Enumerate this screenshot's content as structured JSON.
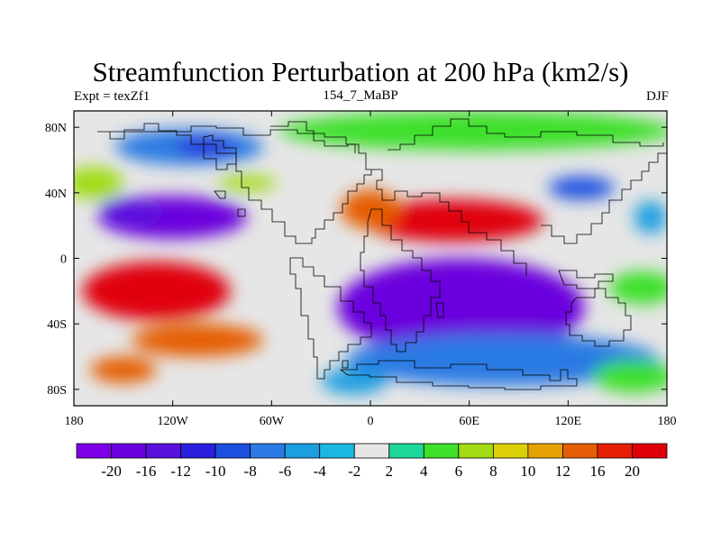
{
  "header": {
    "title": "Streamfunction Perturbation at 200 hPa (km2/s)",
    "left": "Expt = texZf1",
    "center": "154_7_MaBP",
    "right": "DJF"
  },
  "map": {
    "projection": "cylindrical-equidistant",
    "lon_range": [
      -180,
      180
    ],
    "lat_range": [
      -90,
      90
    ],
    "background_color": "#e6e6e6",
    "x_ticks": [
      {
        "lon": -180,
        "label": "180"
      },
      {
        "lon": -120,
        "label": "120W"
      },
      {
        "lon": -60,
        "label": "60W"
      },
      {
        "lon": 0,
        "label": "0"
      },
      {
        "lon": 60,
        "label": "60E"
      },
      {
        "lon": 120,
        "label": "120E"
      },
      {
        "lon": 180,
        "label": "180"
      }
    ],
    "y_ticks": [
      {
        "lat": 80,
        "label": "80N"
      },
      {
        "lat": 40,
        "label": "40N"
      },
      {
        "lat": 0,
        "label": "0"
      },
      {
        "lat": -40,
        "label": "40S"
      },
      {
        "lat": -80,
        "label": "80S"
      }
    ],
    "field": [
      {
        "lon": -120,
        "lat": 25,
        "rlon": 45,
        "rlat": 13,
        "value": -20
      },
      {
        "lon": -145,
        "lat": 28,
        "rlon": 20,
        "rlat": 9,
        "value": -14
      },
      {
        "lon": -110,
        "lat": 68,
        "rlon": 45,
        "rlat": 11,
        "value": -8
      },
      {
        "lon": -100,
        "lat": 68,
        "rlon": 18,
        "rlat": 5,
        "value": -12
      },
      {
        "lon": -75,
        "lat": 46,
        "rlon": 18,
        "rlat": 5,
        "value": 6
      },
      {
        "lon": -168,
        "lat": 46,
        "rlon": 18,
        "rlat": 10,
        "value": 6
      },
      {
        "lon": 50,
        "lat": 23,
        "rlon": 55,
        "rlat": 13,
        "value": 20
      },
      {
        "lon": 0,
        "lat": 30,
        "rlon": 18,
        "rlat": 12,
        "value": 12
      },
      {
        "lon": 128,
        "lat": 43,
        "rlon": 20,
        "rlat": 7,
        "value": -10
      },
      {
        "lon": 65,
        "lat": 78,
        "rlon": 120,
        "rlat": 12,
        "value": 4
      },
      {
        "lon": 170,
        "lat": 25,
        "rlon": 10,
        "rlat": 10,
        "value": -6
      },
      {
        "lon": -130,
        "lat": -20,
        "rlon": 45,
        "rlat": 18,
        "value": 20
      },
      {
        "lon": -105,
        "lat": -50,
        "rlon": 40,
        "rlat": 10,
        "value": 12
      },
      {
        "lon": -150,
        "lat": -68,
        "rlon": 20,
        "rlat": 8,
        "value": 12
      },
      {
        "lon": 55,
        "lat": -30,
        "rlon": 75,
        "rlat": 30,
        "value": -20
      },
      {
        "lon": 80,
        "lat": -62,
        "rlon": 95,
        "rlat": 16,
        "value": -8
      },
      {
        "lon": 160,
        "lat": -72,
        "rlon": 25,
        "rlat": 10,
        "value": 4
      },
      {
        "lon": 165,
        "lat": -18,
        "rlon": 20,
        "rlat": 10,
        "value": 4
      },
      {
        "lon": -10,
        "lat": -75,
        "rlon": 20,
        "rlat": 8,
        "value": -6
      }
    ]
  },
  "colorbar": {
    "colors": [
      "#7d00e8",
      "#6a00dd",
      "#5a10dc",
      "#2a1fdc",
      "#1c4fe0",
      "#2b7ae3",
      "#1c9ee0",
      "#1ab8e0",
      "#e6e6e6",
      "#1ed79a",
      "#3ee02a",
      "#a2dc13",
      "#dccf08",
      "#e5a104",
      "#e55d04",
      "#e62004",
      "#e00008"
    ],
    "labels": [
      "-20",
      "-16",
      "-12",
      "-10",
      "-8",
      "-6",
      "-4",
      "-2",
      "2",
      "4",
      "6",
      "8",
      "10",
      "12",
      "16",
      "20"
    ],
    "levels": [
      -20,
      -16,
      -12,
      -10,
      -8,
      -6,
      -4,
      -2,
      2,
      4,
      6,
      8,
      10,
      12,
      16,
      20
    ]
  }
}
